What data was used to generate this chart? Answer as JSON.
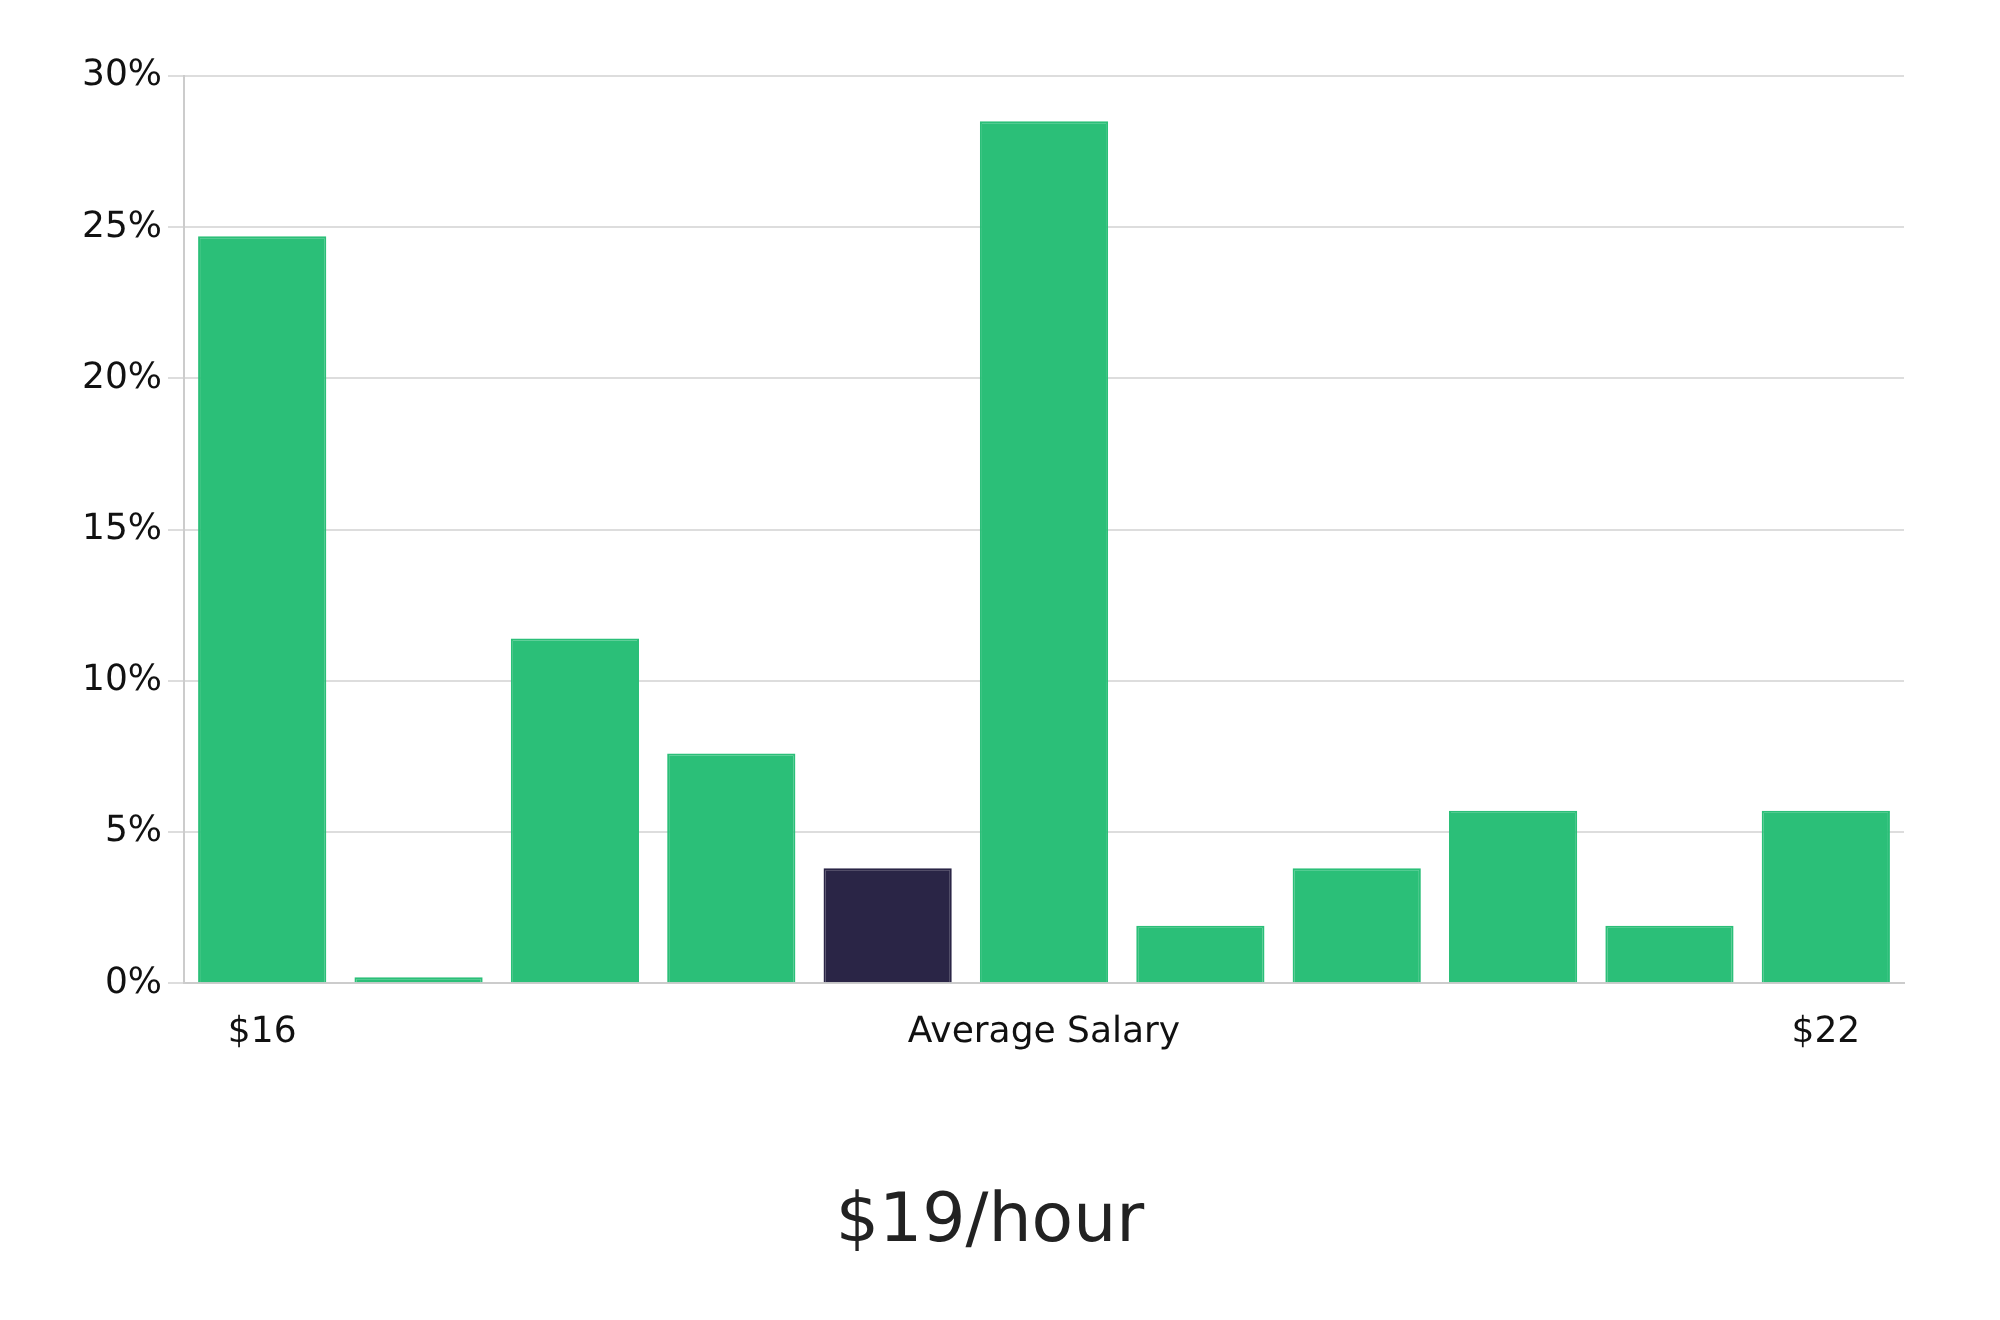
{
  "chart_data": {
    "type": "bar",
    "title": "$19/hour",
    "categories": [
      "$16",
      null,
      null,
      null,
      null,
      "Average Salary",
      null,
      null,
      null,
      null,
      "$22"
    ],
    "values": [
      24.7,
      0.2,
      11.4,
      7.6,
      3.8,
      28.5,
      1.9,
      3.8,
      5.7,
      1.9,
      5.7
    ],
    "colors": [
      "#2bbf78",
      "#2bbf78",
      "#2bbf78",
      "#2bbf78",
      "#2a2546",
      "#2bbf78",
      "#2bbf78",
      "#2bbf78",
      "#2bbf78",
      "#2bbf78",
      "#2bbf78"
    ],
    "ylim": [
      0,
      30
    ],
    "yticks": [
      {
        "value": 0,
        "label": "0%"
      },
      {
        "value": 5,
        "label": "5%"
      },
      {
        "value": 10,
        "label": "10%"
      },
      {
        "value": 15,
        "label": "15%"
      },
      {
        "value": 20,
        "label": "20%"
      },
      {
        "value": 25,
        "label": "25%"
      },
      {
        "value": 30,
        "label": "30%"
      }
    ],
    "grid": "y",
    "legend": false
  }
}
